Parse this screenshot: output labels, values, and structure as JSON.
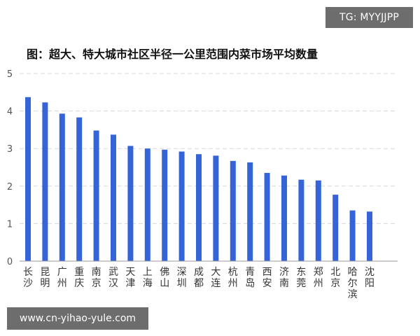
{
  "watermarks": {
    "top": "TG: MYYJJPP",
    "bottom": "www.cn-yihao-yule.com"
  },
  "colors": {
    "bar": "#3563d8",
    "grid": "#d8d8d8",
    "axis": "#999999"
  },
  "chart_data": {
    "type": "bar",
    "title": "图：超大、特大城市社区半径一公里范围内菜市场平均数量",
    "xlabel": "",
    "ylabel": "",
    "ylim": [
      0,
      5
    ],
    "yticks": [
      0,
      1,
      2,
      3,
      4,
      5
    ],
    "grid": true,
    "categories": [
      "长沙",
      "昆明",
      "广州",
      "重庆",
      "南京",
      "武汉",
      "天津",
      "上海",
      "佛山",
      "深圳",
      "成都",
      "大连",
      "杭州",
      "青岛",
      "西安",
      "济南",
      "东莞",
      "郑州",
      "北京",
      "哈尔滨",
      "沈阳"
    ],
    "values": [
      4.37,
      4.23,
      3.93,
      3.83,
      3.48,
      3.37,
      3.07,
      3.0,
      2.97,
      2.92,
      2.85,
      2.81,
      2.67,
      2.63,
      2.35,
      2.28,
      2.17,
      2.15,
      1.77,
      1.35,
      1.32
    ]
  }
}
